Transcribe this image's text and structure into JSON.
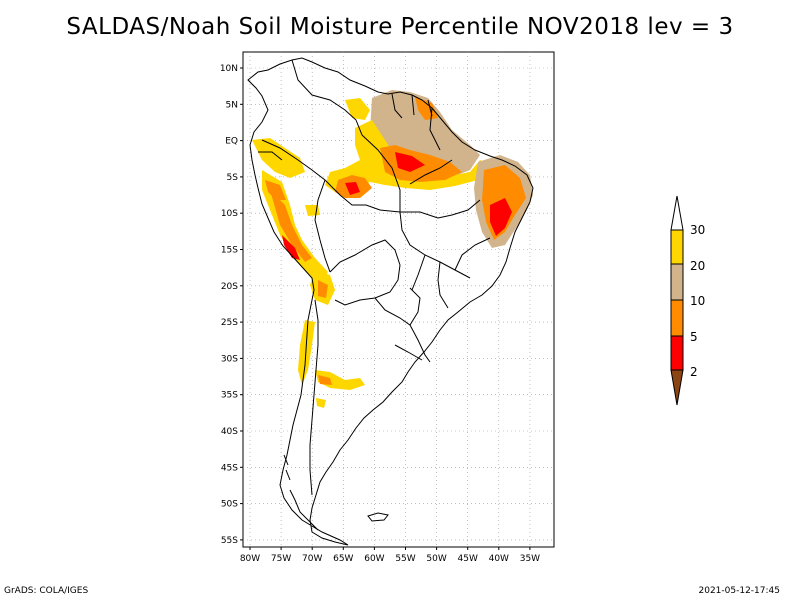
{
  "title": "SALDAS/Noah Soil Moisture Percentile NOV2018 lev = 3",
  "footer": {
    "left": "GrADS: COLA/IGES",
    "right": "2021-05-12-17:45"
  },
  "map": {
    "lat_ticks": [
      "10N",
      "5N",
      "EQ",
      "5S",
      "10S",
      "15S",
      "20S",
      "25S",
      "30S",
      "35S",
      "40S",
      "45S",
      "50S",
      "55S"
    ],
    "lon_ticks": [
      "80W",
      "75W",
      "70W",
      "65W",
      "60W",
      "55W",
      "50W",
      "45W",
      "40W",
      "35W"
    ]
  },
  "legend": {
    "labels": [
      "30",
      "20",
      "10",
      "5",
      "2"
    ],
    "colors": {
      "above_30": "#ffffff",
      "20_30": "#ffd700",
      "10_20": "#d2b48c",
      "5_10": "#ff8c00",
      "2_5": "#ff0000",
      "below_2": "#8b4513"
    }
  }
}
